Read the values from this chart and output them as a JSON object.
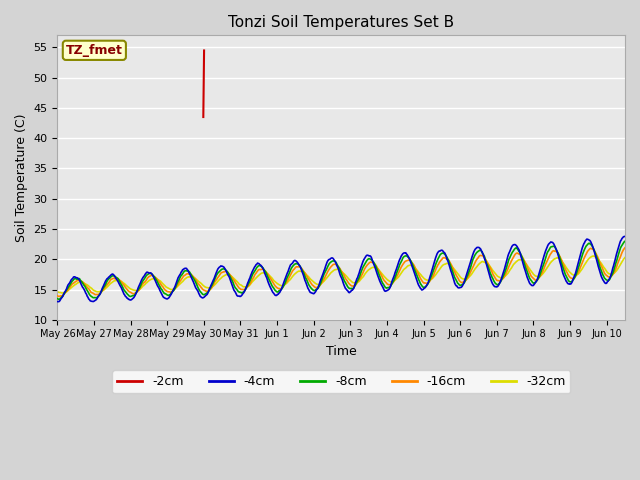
{
  "title": "Tonzi Soil Temperatures Set B",
  "xlabel": "Time",
  "ylabel": "Soil Temperature (C)",
  "ylim": [
    10,
    57
  ],
  "yticks": [
    10,
    15,
    20,
    25,
    30,
    35,
    40,
    45,
    50,
    55
  ],
  "fig_facecolor": "#d4d4d4",
  "plot_bg_color": "#e8e8e8",
  "series_colors": {
    "-2cm": "#cc0000",
    "-4cm": "#0000cc",
    "-8cm": "#00aa00",
    "-16cm": "#ff8800",
    "-32cm": "#dddd00"
  },
  "annotation_box": {
    "text": "TZ_fmet",
    "text_color": "#880000",
    "bg_color": "#ffffcc",
    "edge_color": "#888800"
  },
  "x_tick_days": [
    0,
    1,
    2,
    3,
    4,
    5,
    6,
    7,
    8,
    9,
    10,
    11,
    12,
    13,
    14,
    15
  ],
  "x_tick_labels": [
    "May 26",
    "May 27",
    "May 28",
    "May 29",
    "May 30",
    "May 31",
    "Jun 1",
    "Jun 2",
    "Jun 3",
    "Jun 4",
    "Jun 5",
    "Jun 6",
    "Jun 7",
    "Jun 8",
    "Jun 9",
    "Jun 10"
  ]
}
